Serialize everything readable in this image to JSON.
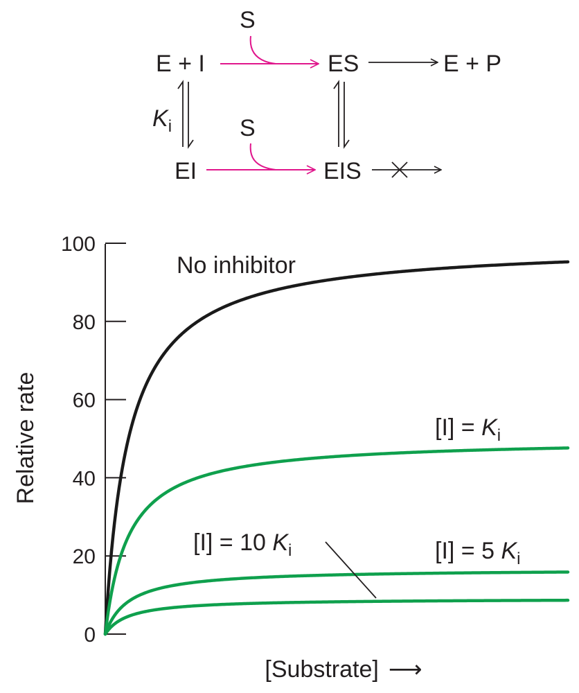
{
  "scheme": {
    "e_plus_i": "E + I",
    "es": "ES",
    "e_plus_p": "E + P",
    "ei": "EI",
    "eis": "EIS",
    "s_top": "S",
    "s_bottom": "S",
    "ki_k": "K",
    "ki_sub": "i"
  },
  "colors": {
    "substrate_arrow": "#e0168c",
    "no_inhibitor": "#1a1a1a",
    "inhibited": "#0fa04d",
    "axis": "#231f20"
  },
  "chart_data": {
    "type": "line",
    "title": "",
    "xlabel": "[Substrate]",
    "ylabel": "Relative rate",
    "xlim": [
      0,
      100
    ],
    "ylim": [
      0,
      100
    ],
    "yticks": [
      "0",
      "20",
      "40",
      "60",
      "80",
      "100"
    ],
    "x_axis_arrow": "⟶",
    "grid": false,
    "series": [
      {
        "name": "No inhibitor",
        "vmax": 100,
        "km": 5.0,
        "color": "#1a1a1a",
        "label_parts": [
          "No inhibitor"
        ]
      },
      {
        "name": "[I] = Ki",
        "vmax": 50,
        "km": 5.0,
        "color": "#0fa04d",
        "label_parts": [
          "[I] = ",
          "K",
          "i"
        ]
      },
      {
        "name": "[I] = 5 Ki",
        "vmax": 16.67,
        "km": 5.0,
        "color": "#0fa04d",
        "label_parts": [
          "[I] = 5 ",
          "K",
          "i"
        ]
      },
      {
        "name": "[I] = 10 Ki",
        "vmax": 9.09,
        "km": 5.0,
        "color": "#0fa04d",
        "label_parts": [
          "[I] = 10 ",
          "K",
          "i"
        ]
      }
    ]
  }
}
